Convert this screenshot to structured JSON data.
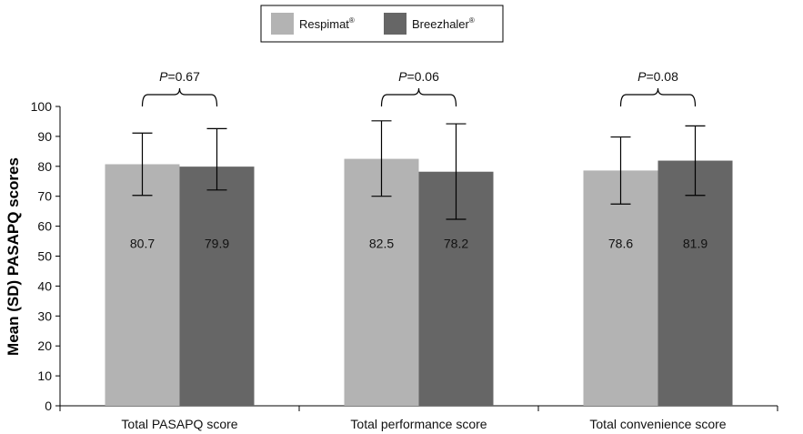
{
  "chart_data": {
    "type": "bar",
    "categories": [
      "Total PASAPQ score",
      "Total performance score",
      "Total convenience score"
    ],
    "series": [
      {
        "name": "Respimat®",
        "color": "#b3b3b3",
        "values": [
          80.7,
          82.5,
          78.6
        ],
        "err_low": [
          70.3,
          70.0,
          67.4
        ],
        "err_high": [
          91.1,
          95.2,
          89.8
        ]
      },
      {
        "name": "Breezhaler®",
        "color": "#666666",
        "values": [
          79.9,
          78.2,
          81.9
        ],
        "err_low": [
          72.1,
          62.3,
          70.3
        ],
        "err_high": [
          92.6,
          94.2,
          93.5
        ]
      }
    ],
    "value_labels": [
      [
        "80.7",
        "82.5",
        "78.6"
      ],
      [
        "79.9",
        "78.2",
        "81.9"
      ]
    ],
    "p_values": [
      {
        "italic": "P",
        "rest": "=0.67"
      },
      {
        "italic": "P",
        "rest": "=0.06"
      },
      {
        "italic": "P",
        "rest": "=0.08"
      }
    ],
    "ylabel": "Mean (SD) PASAPQ scores",
    "xlabel": "",
    "ylim": [
      0,
      100
    ],
    "yticks": [
      0,
      10,
      20,
      30,
      40,
      50,
      60,
      70,
      80,
      90,
      100
    ],
    "grid": false,
    "legend": {
      "placement": "top-center",
      "entries": [
        {
          "base": "Respimat",
          "sup": "®"
        },
        {
          "base": "Breezhaler",
          "sup": "®"
        }
      ]
    }
  }
}
